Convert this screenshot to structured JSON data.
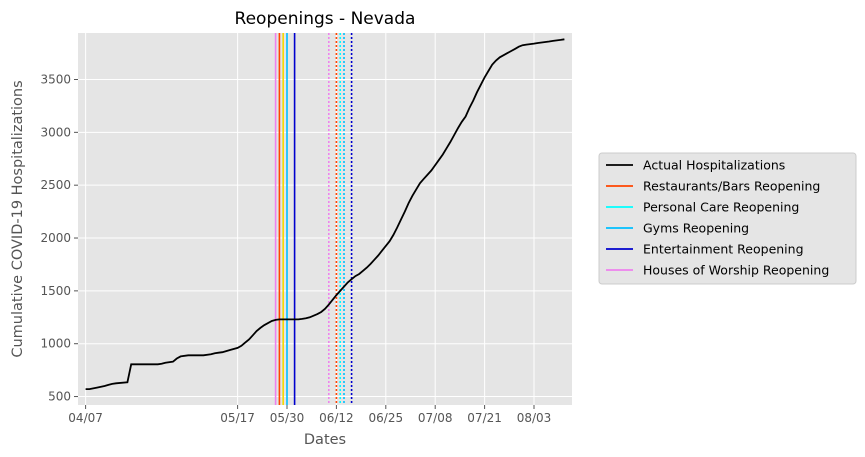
{
  "chart_data": {
    "type": "line",
    "title": "Reopenings - Nevada",
    "xlabel": "Dates",
    "ylabel": "Cumulative COVID-19 Hospitalizations",
    "x_start": "04/07",
    "xlim_days": [
      -2,
      128
    ],
    "ylim": [
      420,
      3940
    ],
    "x_ticks": [
      {
        "label": "04/07",
        "day": 0
      },
      {
        "label": "05/17",
        "day": 40
      },
      {
        "label": "05/30",
        "day": 53
      },
      {
        "label": "06/12",
        "day": 66
      },
      {
        "label": "06/25",
        "day": 79
      },
      {
        "label": "07/08",
        "day": 92
      },
      {
        "label": "07/21",
        "day": 105
      },
      {
        "label": "08/03",
        "day": 118
      }
    ],
    "y_ticks": [
      500,
      1000,
      1500,
      2000,
      2500,
      3000,
      3500
    ],
    "grid": true,
    "legend_position": "outside-right",
    "series": [
      {
        "name": "Actual Hospitalizations",
        "color": "#000000",
        "x": [
          0,
          1,
          3,
          5,
          6,
          7,
          8,
          11,
          12,
          13,
          14,
          15,
          16,
          18,
          19,
          20,
          21,
          23,
          24,
          25,
          27,
          29,
          31,
          33,
          34,
          35,
          36,
          37,
          38,
          40,
          41,
          42,
          43,
          44,
          45,
          46,
          47,
          49,
          50,
          51,
          52,
          53,
          54,
          55,
          56,
          57,
          58,
          59,
          60,
          61,
          62,
          63,
          64,
          65,
          66,
          67,
          68,
          69,
          70,
          71,
          72,
          73,
          74,
          75,
          76,
          77,
          78,
          79,
          80,
          81,
          82,
          83,
          84,
          85,
          86,
          87,
          88,
          89,
          90,
          91,
          92,
          93,
          94,
          95,
          96,
          97,
          98,
          99,
          100,
          101,
          102,
          103,
          104,
          105,
          106,
          107,
          108,
          109,
          110,
          111,
          112,
          113,
          114,
          115,
          116,
          117,
          118,
          119,
          120,
          121,
          122,
          123,
          124,
          125,
          126
        ],
        "values": [
          570,
          570,
          585,
          600,
          610,
          620,
          625,
          635,
          805,
          805,
          805,
          805,
          805,
          805,
          805,
          810,
          820,
          830,
          860,
          880,
          890,
          890,
          890,
          900,
          910,
          915,
          920,
          930,
          940,
          960,
          980,
          1010,
          1040,
          1080,
          1120,
          1150,
          1175,
          1215,
          1225,
          1230,
          1230,
          1230,
          1230,
          1230,
          1230,
          1235,
          1240,
          1250,
          1265,
          1280,
          1300,
          1330,
          1370,
          1415,
          1460,
          1500,
          1540,
          1580,
          1610,
          1640,
          1660,
          1690,
          1720,
          1755,
          1795,
          1835,
          1880,
          1925,
          1970,
          2030,
          2100,
          2175,
          2250,
          2330,
          2400,
          2460,
          2520,
          2560,
          2600,
          2640,
          2690,
          2740,
          2790,
          2850,
          2910,
          2975,
          3040,
          3100,
          3150,
          3230,
          3300,
          3380,
          3450,
          3520,
          3580,
          3640,
          3680,
          3710,
          3730,
          3750,
          3770,
          3790,
          3810,
          3825,
          3830,
          3835,
          3840,
          3845,
          3850,
          3855,
          3860,
          3865,
          3870,
          3875,
          3880
        ]
      }
    ],
    "reopenings": [
      {
        "name": "Restaurants/Bars Reopening",
        "color": "#ff4500",
        "days": [
          51,
          66
        ]
      },
      {
        "name": "Personal Care Reopening",
        "color": "#00ffff",
        "days": [
          52,
          67
        ]
      },
      {
        "name": "Gyms Reopening",
        "color": "#00bfff",
        "days": [
          53,
          68
        ]
      },
      {
        "name": "Entertainment Reopening",
        "color": "#0000cd",
        "days": [
          55,
          70
        ]
      },
      {
        "name": "Houses of Worship Reopening",
        "color": "#ee82ee",
        "days": [
          50,
          64
        ]
      }
    ],
    "dotted_extra": [
      {
        "color": "#ffd700",
        "day": 52
      }
    ]
  }
}
